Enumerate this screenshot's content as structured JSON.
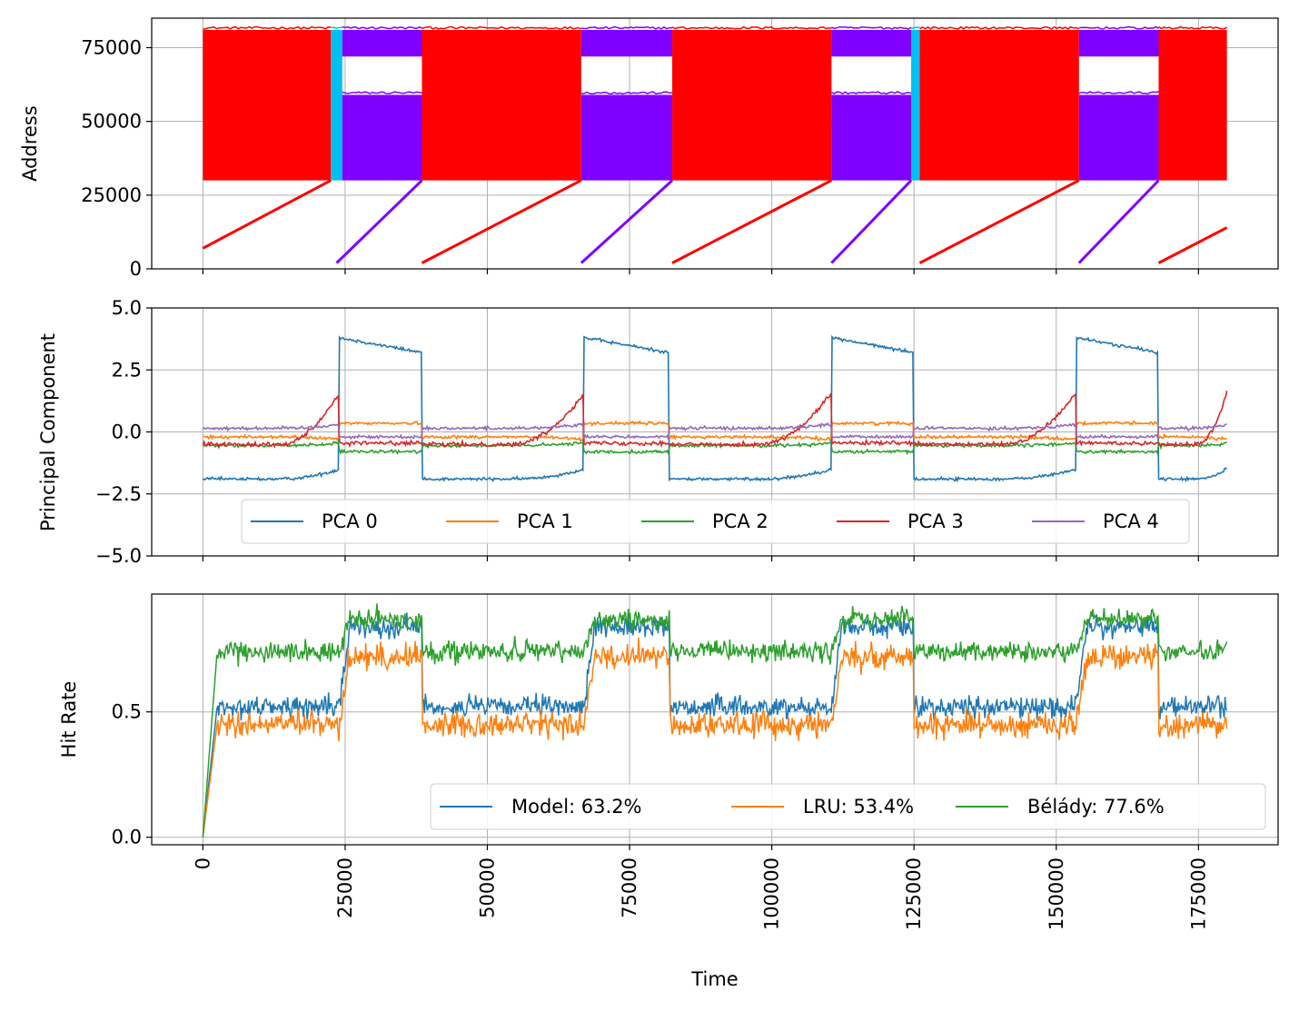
{
  "colors": {
    "address_red": "#ff0000",
    "address_purple": "#8000ff",
    "address_cyan": "#00c0f0",
    "pca": [
      "#1f77b4",
      "#ff7f0e",
      "#2ca02c",
      "#d62728",
      "#9467bd"
    ],
    "hit": [
      "#1f77b4",
      "#ff7f0e",
      "#2ca02c"
    ],
    "grid": "#b0b0b0"
  },
  "chart_data": [
    {
      "type": "scatter",
      "ylabel": "Address",
      "xlim": [
        -9000,
        189000
      ],
      "ylim": [
        0,
        85000
      ],
      "yticks": [
        0,
        25000,
        50000,
        75000
      ],
      "yticklabels": [
        "0",
        "25000",
        "50000",
        "75000"
      ],
      "grid": true,
      "phases": [
        {
          "start": 0,
          "end": 22500,
          "series": "red",
          "band": "full",
          "ramp_from": [
            0,
            7000
          ],
          "ramp_to": [
            22500,
            30000
          ]
        },
        {
          "start": 22500,
          "end": 24500,
          "series": "cyan",
          "band": "full"
        },
        {
          "start": 24500,
          "end": 38500,
          "series": "purple",
          "band": "split",
          "ramp_from": [
            23500,
            2000
          ],
          "ramp_to": [
            38500,
            30000
          ]
        },
        {
          "start": 38500,
          "end": 66500,
          "series": "red",
          "band": "full",
          "ramp_from": [
            38500,
            2000
          ],
          "ramp_to": [
            66500,
            30000
          ]
        },
        {
          "start": 66500,
          "end": 82500,
          "series": "purple",
          "band": "split",
          "ramp_from": [
            66500,
            2000
          ],
          "ramp_to": [
            82500,
            30000
          ]
        },
        {
          "start": 82500,
          "end": 110500,
          "series": "red",
          "band": "full",
          "ramp_from": [
            82500,
            2000
          ],
          "ramp_to": [
            110500,
            30000
          ]
        },
        {
          "start": 110500,
          "end": 124500,
          "series": "purple",
          "band": "split",
          "ramp_from": [
            110500,
            2000
          ],
          "ramp_to": [
            124500,
            30000
          ]
        },
        {
          "start": 124500,
          "end": 126000,
          "series": "cyan",
          "band": "full"
        },
        {
          "start": 126000,
          "end": 154000,
          "series": "red",
          "band": "full",
          "ramp_from": [
            126000,
            2000
          ],
          "ramp_to": [
            154000,
            30000
          ]
        },
        {
          "start": 154000,
          "end": 168000,
          "series": "purple",
          "band": "split",
          "ramp_from": [
            154000,
            2000
          ],
          "ramp_to": [
            168000,
            30000
          ]
        },
        {
          "start": 168000,
          "end": 180000,
          "series": "red",
          "band": "full",
          "ramp_from": [
            168000,
            2000
          ],
          "ramp_to": [
            180000,
            14000
          ]
        }
      ],
      "band_full": [
        30000,
        81000
      ],
      "band_split_low": [
        30000,
        59000
      ],
      "band_split_high": [
        72000,
        81000
      ]
    },
    {
      "type": "line",
      "ylabel": "Principal Component",
      "xlim": [
        -9000,
        189000
      ],
      "ylim": [
        -5,
        5
      ],
      "yticks": [
        -5,
        -2.5,
        0,
        2.5,
        5
      ],
      "yticklabels": [
        "−5.0",
        "−2.5",
        "0.0",
        "2.5",
        "5.0"
      ],
      "grid": true,
      "legend_position": "lower center",
      "legend_ncol": 5,
      "series": [
        {
          "name": "PCA 0",
          "levels": {
            "A": -1.9,
            "A2": -1.5,
            "B": 3.8
          },
          "noise": 0.06
        },
        {
          "name": "PCA 1",
          "levels": {
            "A": -0.2,
            "A2": -0.3,
            "B": 0.35
          },
          "noise": 0.06
        },
        {
          "name": "PCA 2",
          "levels": {
            "A": -0.55,
            "A2": -0.45,
            "B": -0.8
          },
          "noise": 0.06
        },
        {
          "name": "PCA 3",
          "levels": {
            "A": -0.5,
            "A2": 1.6,
            "B": -0.45
          },
          "noise": 0.08
        },
        {
          "name": "PCA 4",
          "levels": {
            "A": 0.15,
            "A2": 0.3,
            "B": -0.2
          },
          "noise": 0.06
        }
      ]
    },
    {
      "type": "line",
      "xlabel": "Time",
      "ylabel": "Hit Rate",
      "xlim": [
        -9000,
        189000
      ],
      "ylim": [
        -0.03,
        0.97
      ],
      "yticks": [
        0,
        0.5
      ],
      "yticklabels": [
        "0.0",
        "0.5"
      ],
      "xticks": [
        0,
        25000,
        50000,
        75000,
        100000,
        125000,
        150000,
        175000
      ],
      "xticklabels": [
        "0",
        "25000",
        "50000",
        "75000",
        "100000",
        "125000",
        "150000",
        "175000"
      ],
      "grid": true,
      "legend_position": "lower right",
      "legend_ncol": 3,
      "series": [
        {
          "name": "Model: 63.2%",
          "A": 0.52,
          "B": 0.84,
          "noise": 0.04
        },
        {
          "name": "LRU: 53.4%",
          "A": 0.45,
          "B": 0.72,
          "noise": 0.05
        },
        {
          "name": "Bélády: 77.6%",
          "A": 0.74,
          "B": 0.87,
          "noise": 0.04
        }
      ]
    }
  ],
  "segments": [
    {
      "start": 0,
      "end": 24000,
      "kind": "A"
    },
    {
      "start": 24000,
      "end": 38500,
      "kind": "B"
    },
    {
      "start": 38500,
      "end": 67000,
      "kind": "A"
    },
    {
      "start": 67000,
      "end": 82000,
      "kind": "B"
    },
    {
      "start": 82000,
      "end": 110500,
      "kind": "A"
    },
    {
      "start": 110500,
      "end": 125000,
      "kind": "B"
    },
    {
      "start": 125000,
      "end": 153500,
      "kind": "A"
    },
    {
      "start": 153500,
      "end": 168000,
      "kind": "B"
    },
    {
      "start": 168000,
      "end": 180000,
      "kind": "A"
    }
  ]
}
